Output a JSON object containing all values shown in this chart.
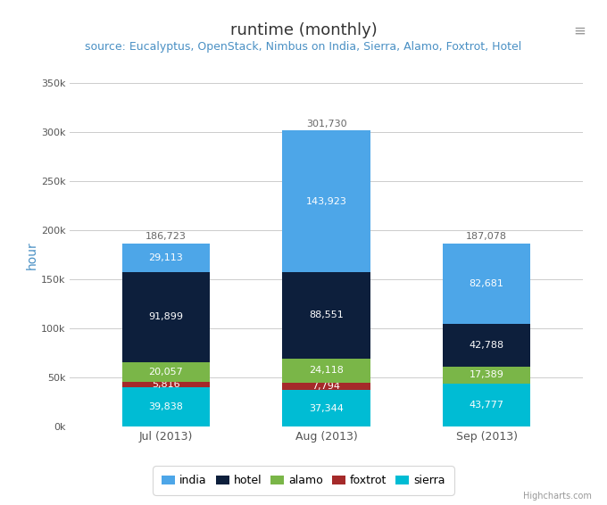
{
  "title": "runtime (monthly)",
  "subtitle": "source: Eucalyptus, OpenStack, Nimbus on India, Sierra, Alamo, Foxtrot, Hotel",
  "ylabel": "hour",
  "categories": [
    "Jul (2013)",
    "Aug (2013)",
    "Sep (2013)"
  ],
  "series": {
    "sierra": [
      39838,
      37344,
      43777
    ],
    "foxtrot": [
      5816,
      7794,
      443
    ],
    "alamo": [
      20057,
      24118,
      17389
    ],
    "hotel": [
      91899,
      88551,
      42788
    ],
    "india": [
      29113,
      143923,
      82681
    ]
  },
  "totals": [
    186723,
    301730,
    187078
  ],
  "colors": {
    "india": "#4da6e8",
    "hotel": "#0d1f3c",
    "alamo": "#7ab648",
    "foxtrot": "#a52a2a",
    "sierra": "#00bcd4"
  },
  "ylim": [
    0,
    350000
  ],
  "yticks": [
    0,
    50000,
    100000,
    150000,
    200000,
    250000,
    300000,
    350000
  ],
  "ytick_labels": [
    "0k",
    "50k",
    "100k",
    "150k",
    "200k",
    "250k",
    "300k",
    "350k"
  ],
  "background_color": "#ffffff",
  "plot_bg_color": "#ffffff",
  "title_color": "#333333",
  "subtitle_color": "#4a90c4",
  "grid_color": "#cccccc",
  "text_color_light": "#ffffff",
  "total_label_color": "#666666",
  "bar_width": 0.55,
  "title_fontsize": 13,
  "subtitle_fontsize": 9,
  "label_fontsize": 8,
  "legend_fontsize": 9,
  "tick_fontsize": 8,
  "watermark_color": "#999999"
}
